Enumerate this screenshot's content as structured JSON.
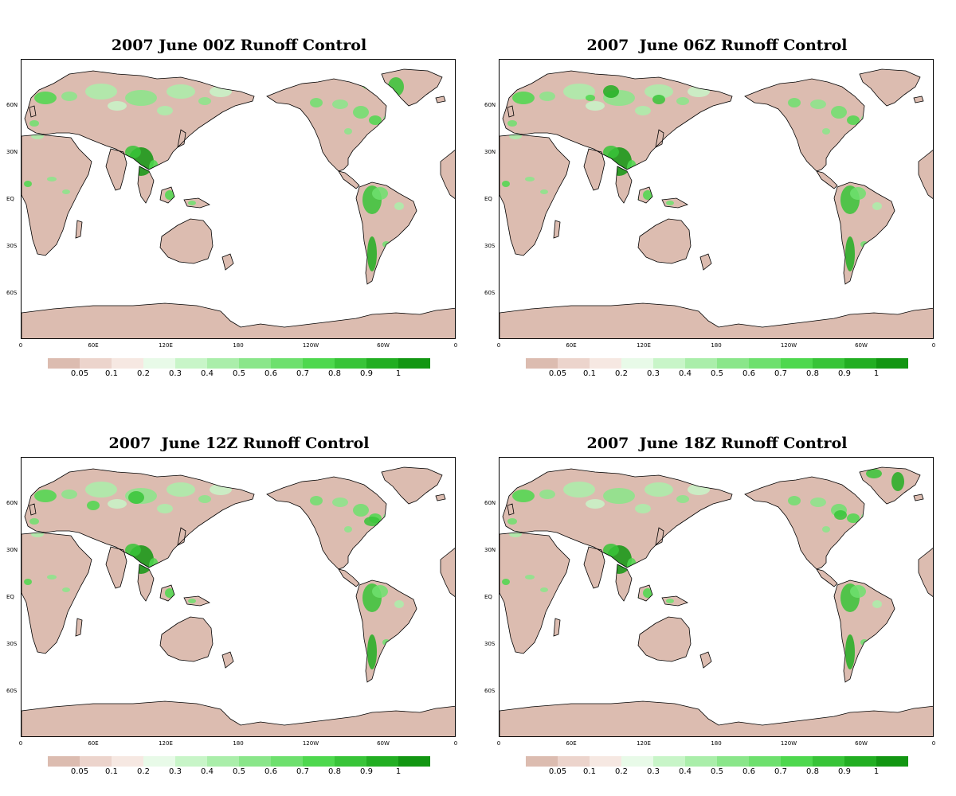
{
  "panels": [
    {
      "title": "2007 June 00Z Runoff Control",
      "variant": 0
    },
    {
      "title": "2007  June 06Z Runoff Control",
      "variant": 1
    },
    {
      "title": "2007  June 12Z Runoff Control",
      "variant": 2
    },
    {
      "title": "2007  June 18Z Runoff Control",
      "variant": 3
    }
  ],
  "lat_labels": [
    "60N",
    "30N",
    "EQ",
    "30S",
    "60S"
  ],
  "lon_labels": [
    "0",
    "60E",
    "120E",
    "180",
    "120W",
    "60W",
    "0"
  ],
  "colorbar": {
    "colors": [
      "#dcbcb0",
      "#ecd4cc",
      "#f6e8e2",
      "#e8fae8",
      "#c8f5c8",
      "#aaeeaa",
      "#8ae68a",
      "#6ee06e",
      "#4ed84e",
      "#38c438",
      "#22ae22",
      "#129612"
    ],
    "labels": [
      "0.05",
      "0.1",
      "0.2",
      "0.3",
      "0.4",
      "0.5",
      "0.6",
      "0.7",
      "0.8",
      "0.9",
      "1"
    ]
  },
  "colors": {
    "land": "#dcbcb0",
    "ocean": "#ffffff",
    "coast": "#000000"
  }
}
